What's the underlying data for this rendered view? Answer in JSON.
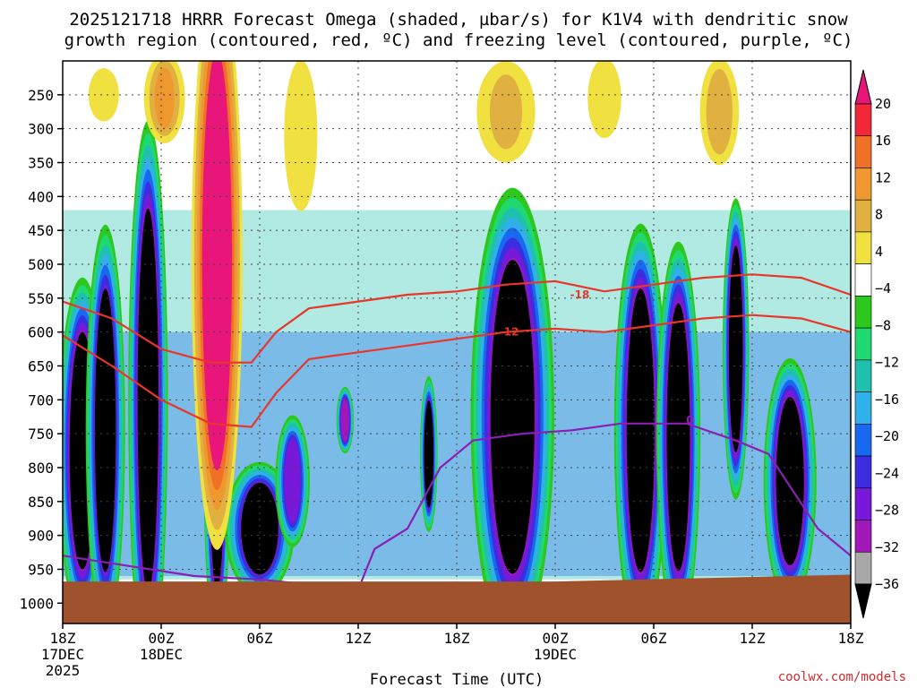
{
  "chart_data": {
    "type": "heatmap",
    "title_line1": "2025121718 HRRR Forecast Omega (shaded, µbar/s) for K1V4 with dendritic snow",
    "title_line2": "growth region (contoured, red, ºC) and freezing level (contoured, purple, ºC)",
    "xlabel": "Forecast Time (UTC)",
    "credit": "coolwx.com/models",
    "x_ticks": [
      {
        "hour": 0,
        "l1": "18Z",
        "l2": "17DEC",
        "l3": "2025"
      },
      {
        "hour": 6,
        "l1": "00Z",
        "l2": "18DEC",
        "l3": ""
      },
      {
        "hour": 12,
        "l1": "06Z",
        "l2": "",
        "l3": ""
      },
      {
        "hour": 18,
        "l1": "12Z",
        "l2": "",
        "l3": ""
      },
      {
        "hour": 24,
        "l1": "18Z",
        "l2": "",
        "l3": ""
      },
      {
        "hour": 30,
        "l1": "00Z",
        "l2": "19DEC",
        "l3": ""
      },
      {
        "hour": 36,
        "l1": "06Z",
        "l2": "",
        "l3": ""
      },
      {
        "hour": 42,
        "l1": "12Z",
        "l2": "",
        "l3": ""
      },
      {
        "hour": 48,
        "l1": "18Z",
        "l2": "",
        "l3": ""
      }
    ],
    "x_range_hours": [
      0,
      48
    ],
    "y_ticks": [
      "250",
      "300",
      "350",
      "400",
      "450",
      "500",
      "550",
      "600",
      "650",
      "700",
      "750",
      "800",
      "850",
      "900",
      "950",
      "1000"
    ],
    "y_tick_values": [
      250,
      300,
      350,
      400,
      450,
      500,
      550,
      600,
      650,
      700,
      750,
      800,
      850,
      900,
      950,
      1000
    ],
    "y_range_hpa": [
      200,
      1030
    ],
    "colorbar": {
      "labels": [
        "20",
        "16",
        "12",
        "8",
        "4",
        "−4",
        "−8",
        "−12",
        "−16",
        "−20",
        "−24",
        "−28",
        "−32",
        "−36"
      ],
      "colors": [
        "#e8157a",
        "#f0283a",
        "#f07028",
        "#f09830",
        "#e0b040",
        "#f0e040",
        "#ffffff",
        "#2cc81e",
        "#20d870",
        "#20c0b0",
        "#30b0e8",
        "#1868f0",
        "#3a2ee0",
        "#7818d8",
        "#a018b8",
        "#a8a8a8",
        "#000000"
      ]
    },
    "omega_cells": [
      {
        "h": 1.2,
        "p1": 620,
        "p2": 930,
        "w": 1.1,
        "v": -40
      },
      {
        "h": 2.6,
        "p1": 560,
        "p2": 930,
        "w": 0.9,
        "v": -36
      },
      {
        "h": 5.2,
        "p1": 450,
        "p2": 950,
        "w": 0.9,
        "v": -40
      },
      {
        "h": 9.4,
        "p1": 650,
        "p2": 960,
        "w": 0.6,
        "v": -40
      },
      {
        "h": 12.0,
        "p1": 830,
        "p2": 950,
        "w": 1.6,
        "v": -36
      },
      {
        "h": 14.0,
        "p1": 760,
        "p2": 880,
        "w": 0.8,
        "v": -30
      },
      {
        "h": 17.2,
        "p1": 700,
        "p2": 760,
        "w": 0.4,
        "v": -34
      },
      {
        "h": 22.3,
        "p1": 710,
        "p2": 850,
        "w": 0.4,
        "v": -36
      },
      {
        "h": 27.4,
        "p1": 520,
        "p2": 930,
        "w": 1.9,
        "v": -40
      },
      {
        "h": 35.2,
        "p1": 560,
        "p2": 930,
        "w": 1.2,
        "v": -40
      },
      {
        "h": 37.5,
        "p1": 580,
        "p2": 930,
        "w": 1.0,
        "v": -40
      },
      {
        "h": 41.0,
        "p1": 490,
        "p2": 760,
        "w": 0.6,
        "v": -40
      },
      {
        "h": 44.3,
        "p1": 710,
        "p2": 930,
        "w": 1.2,
        "v": -40
      },
      {
        "h": 9.4,
        "p1": 230,
        "p2": 760,
        "w": 1.2,
        "v": 26
      },
      {
        "h": 6.2,
        "p1": 210,
        "p2": 300,
        "w": 1.1,
        "v": 12
      },
      {
        "h": 2.5,
        "p1": 220,
        "p2": 280,
        "w": 1.0,
        "v": 7
      },
      {
        "h": 14.5,
        "p1": 220,
        "p2": 400,
        "w": 1.2,
        "v": 6
      },
      {
        "h": 27.0,
        "p1": 220,
        "p2": 330,
        "w": 1.8,
        "v": 8
      },
      {
        "h": 40.0,
        "p1": 220,
        "p2": 330,
        "w": 1.1,
        "v": 10
      },
      {
        "h": 33.0,
        "p1": 210,
        "p2": 300,
        "w": 1.1,
        "v": 7
      }
    ],
    "dgz_contours": [
      {
        "label": "-18",
        "label_at": [
          31.5,
          545
        ],
        "points": [
          [
            0,
            555
          ],
          [
            3,
            580
          ],
          [
            6,
            625
          ],
          [
            9,
            645
          ],
          [
            11.5,
            645
          ],
          [
            13,
            600
          ],
          [
            15,
            565
          ],
          [
            18,
            555
          ],
          [
            21,
            545
          ],
          [
            24,
            540
          ],
          [
            27,
            530
          ],
          [
            30,
            525
          ],
          [
            33,
            540
          ],
          [
            36,
            530
          ],
          [
            39,
            520
          ],
          [
            42,
            515
          ],
          [
            45,
            520
          ],
          [
            48,
            545
          ]
        ]
      },
      {
        "label": "-12",
        "label_at": [
          27.2,
          600
        ],
        "points": [
          [
            0,
            605
          ],
          [
            3,
            650
          ],
          [
            6,
            700
          ],
          [
            9,
            735
          ],
          [
            11.5,
            740
          ],
          [
            13,
            690
          ],
          [
            15,
            640
          ],
          [
            18,
            630
          ],
          [
            21,
            620
          ],
          [
            24,
            610
          ],
          [
            27,
            600
          ],
          [
            30,
            595
          ],
          [
            33,
            600
          ],
          [
            36,
            590
          ],
          [
            39,
            580
          ],
          [
            42,
            575
          ],
          [
            45,
            580
          ],
          [
            48,
            600
          ]
        ]
      }
    ],
    "freezing_contours": [
      {
        "label": "0",
        "label_at": [
          38.2,
          730
        ],
        "points": [
          [
            0,
            930
          ],
          [
            4,
            945
          ],
          [
            8,
            960
          ],
          [
            12,
            965
          ],
          [
            16,
            975
          ],
          [
            18,
            980
          ],
          [
            19,
            920
          ],
          [
            21,
            890
          ],
          [
            23,
            800
          ],
          [
            25,
            760
          ],
          [
            28,
            750
          ],
          [
            31,
            745
          ],
          [
            34,
            735
          ],
          [
            38,
            735
          ],
          [
            41,
            760
          ],
          [
            43,
            780
          ],
          [
            46,
            890
          ],
          [
            48,
            930
          ]
        ]
      }
    ]
  }
}
